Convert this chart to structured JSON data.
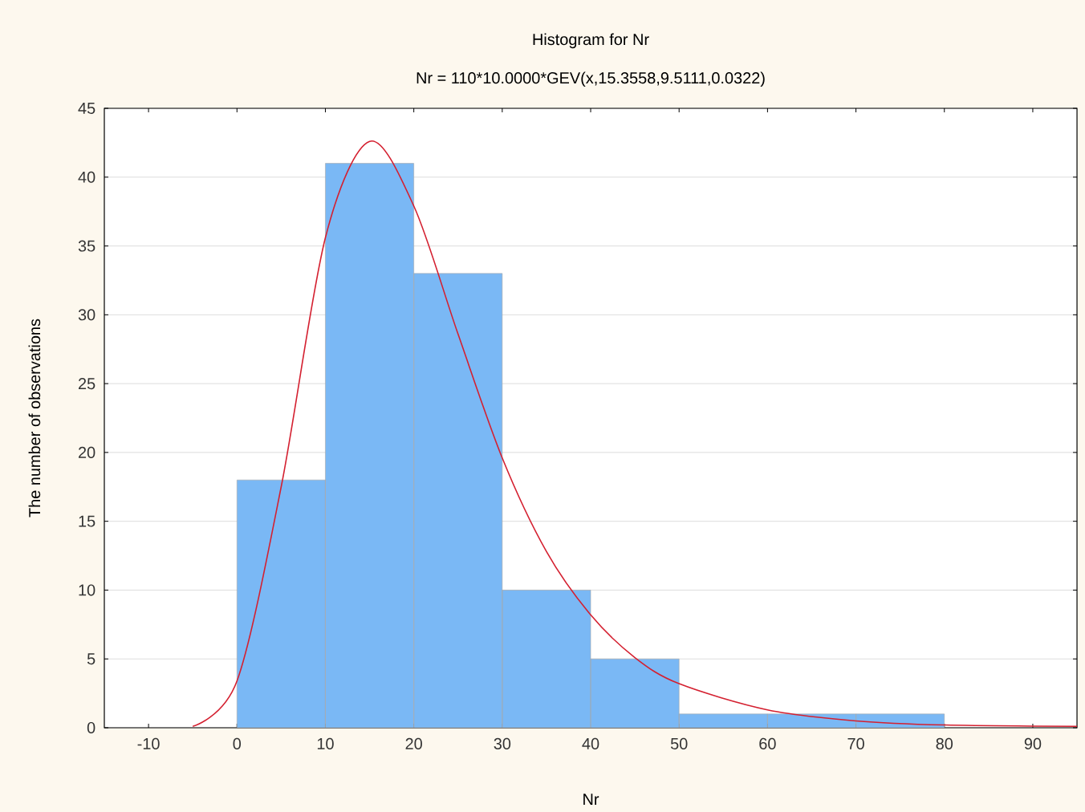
{
  "chart_data": {
    "type": "histogram",
    "title": "Histogram for Nr",
    "subtitle": "Nr = 110*10.0000*GEV(x,15.3558,9.5111,0.0322)",
    "xlabel": "Nr",
    "ylabel": "The number of observations",
    "series": [
      {
        "bins": [
          0,
          10,
          20,
          30,
          40,
          50,
          60,
          70,
          80
        ],
        "values": [
          18,
          41,
          33,
          10,
          5,
          1,
          1,
          1
        ],
        "color": "#7ab8f5"
      },
      {
        "type": "line",
        "x": [
          -5,
          0,
          5,
          10,
          15,
          20,
          25,
          30,
          35,
          40,
          45,
          50,
          60,
          70,
          80,
          95
        ],
        "values": [
          0.1,
          3.4,
          17.5,
          35.6,
          42.6,
          37.9,
          28.6,
          19.6,
          12.8,
          8.2,
          5.1,
          3.2,
          1.3,
          0.5,
          0.2,
          0.1
        ],
        "color": "#d42030"
      }
    ],
    "xlim": [
      -15,
      95
    ],
    "ylim": [
      0,
      45
    ],
    "xticks": [
      -10,
      0,
      10,
      20,
      30,
      40,
      50,
      60,
      70,
      80,
      90
    ],
    "yticks": [
      0,
      5,
      10,
      15,
      20,
      25,
      30,
      35,
      40,
      45
    ],
    "grid": "y"
  }
}
